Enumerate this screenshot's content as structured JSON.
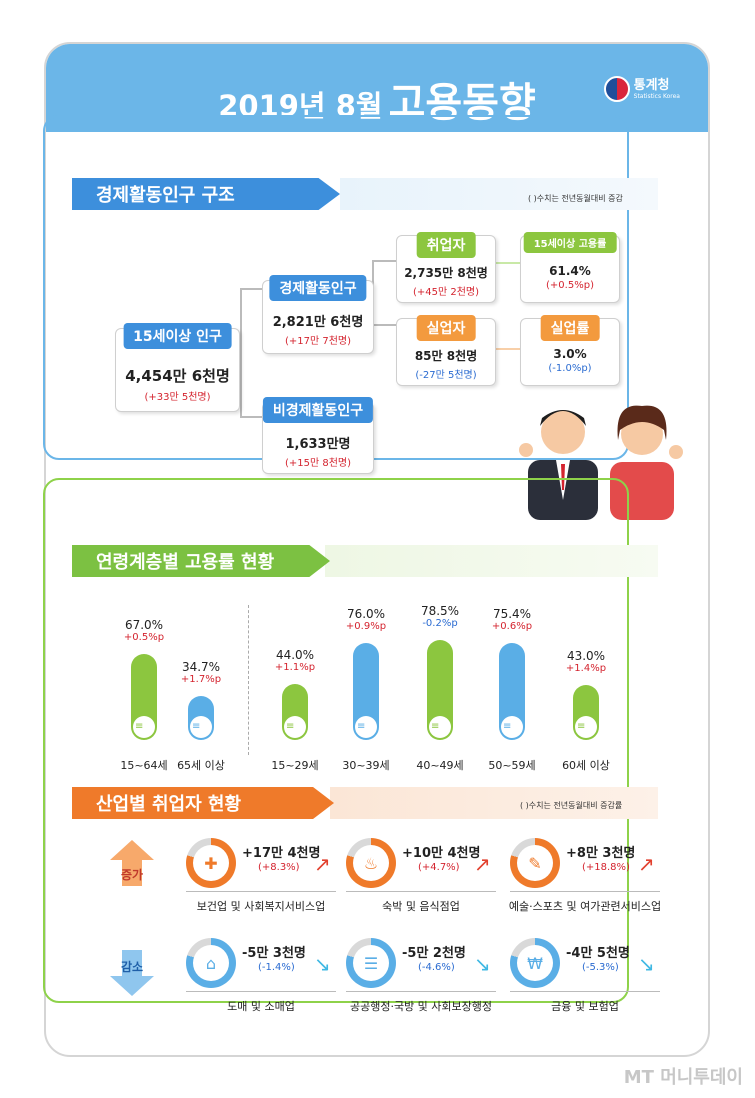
{
  "header": {
    "title_year": "2019년 8월",
    "title_main": "고용동향",
    "logo_name": "통계청",
    "logo_sub": "Statistics Korea"
  },
  "section1": {
    "title": "경제활동인구 구조",
    "note": "( )수치는 전년동월대비 증감",
    "pop15": {
      "label": "15세이상 인구",
      "value": "4,454만 6천명",
      "change": "(+33만 5천명)"
    },
    "active": {
      "label": "경제활동인구",
      "value": "2,821만 6천명",
      "change": "(+17만 7천명)"
    },
    "inactive": {
      "label": "비경제활동인구",
      "value": "1,633만명",
      "change": "(+15만 8천명)"
    },
    "employed": {
      "label": "취업자",
      "value": "2,735만 8천명",
      "change": "(+45만 2천명)"
    },
    "emp_rate": {
      "label": "15세이상 고용률",
      "value": "61.4%",
      "change": "(+0.5%p)"
    },
    "unemployed": {
      "label": "실업자",
      "value": "85만 8천명",
      "change": "(-27만 5천명)"
    },
    "unemp_rate": {
      "label": "실업률",
      "value": "3.0%",
      "change": "(-1.0%p)"
    }
  },
  "section2": {
    "title": "연령계층별 고용률 현황"
  },
  "chart_data": {
    "type": "bar",
    "categories": [
      "15~64세",
      "65세 이상",
      "15~29세",
      "30~39세",
      "40~49세",
      "50~59세",
      "60세 이상"
    ],
    "values": [
      67.0,
      34.7,
      44.0,
      76.0,
      78.5,
      75.4,
      43.0
    ],
    "labels": [
      "67.0%",
      "34.7%",
      "44.0%",
      "76.0%",
      "78.5%",
      "75.4%",
      "43.0%"
    ],
    "changes": [
      "+0.5%p",
      "+1.7%p",
      "+1.1%p",
      "+0.9%p",
      "-0.2%p",
      "+0.6%p",
      "+1.4%p"
    ],
    "colors": [
      "#8cc63f",
      "#5aaee6",
      "#8cc63f",
      "#5aaee6",
      "#8cc63f",
      "#5aaee6",
      "#8cc63f"
    ]
  },
  "section3": {
    "title": "산업별 취업자 현황",
    "note": "( )수치는 전년동월대비 증감률",
    "increase_label": "증가",
    "decrease_label": "감소",
    "increase": [
      {
        "value": "+17만 4천명",
        "change": "(+8.3%)",
        "name": "보건업 및 사회복지서비스업",
        "icon": "medical-kit-icon"
      },
      {
        "value": "+10만 4천명",
        "change": "(+4.7%)",
        "name": "숙박 및 음식점업",
        "icon": "dining-icon"
      },
      {
        "value": "+8만 3천명",
        "change": "(+18.8%)",
        "name": "예술·스포츠 및 여가관련서비스업",
        "icon": "art-palette-icon"
      }
    ],
    "decrease": [
      {
        "value": "-5만 3천명",
        "change": "(-1.4%)",
        "name": "도매 및 소매업",
        "icon": "shopping-basket-icon"
      },
      {
        "value": "-5만 2천명",
        "change": "(-4.6%)",
        "name": "공공행정·국방 및 사회보장행정",
        "icon": "document-scroll-icon"
      },
      {
        "value": "-4만 5천명",
        "change": "(-5.3%)",
        "name": "금융 및 보험업",
        "icon": "atm-icon"
      }
    ]
  },
  "watermark": "MT 머니투데이"
}
